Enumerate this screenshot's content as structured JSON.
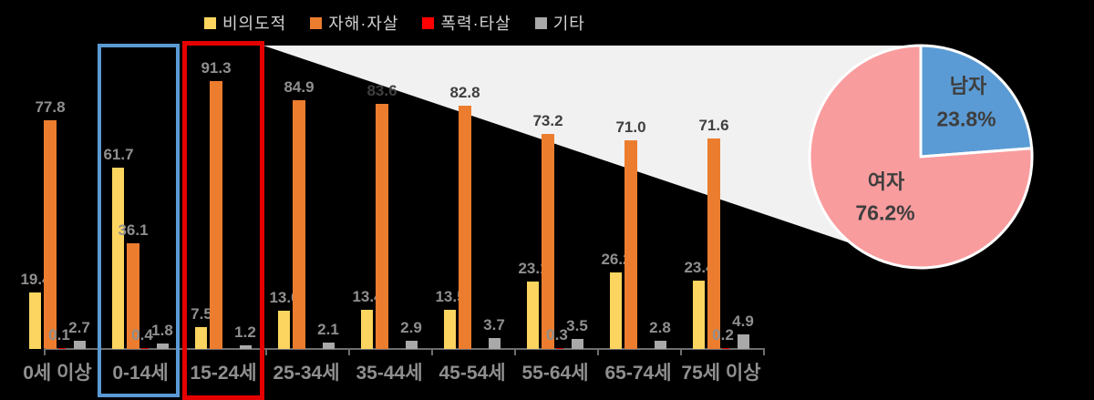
{
  "background": "#000000",
  "colors": {
    "wedge": "#F1F1F1",
    "axis": "#6E6E6E",
    "value_label": "#8F8F8F",
    "value_label_dark": "#3F3F3F",
    "category_label": "#8F8F8F",
    "legend_text": "#D2D2D2",
    "pie_stroke": "#FFFFFF"
  },
  "legend": {
    "items": [
      {
        "label": "비의도적",
        "color": "#FBD55F"
      },
      {
        "label": "자해·자살",
        "color": "#EC7D2F"
      },
      {
        "label": "폭력·타살",
        "color": "#FF0000"
      },
      {
        "label": "기타",
        "color": "#A9A9A9"
      }
    ]
  },
  "chart_data": [
    {
      "type": "bar",
      "title": "",
      "xlabel": "",
      "ylabel": "",
      "ylim": [
        0,
        100
      ],
      "grid": false,
      "legend_position": "top",
      "value_labels": true,
      "categories": [
        "0세 이상",
        "0-14세",
        "15-24세",
        "25-34세",
        "35-44세",
        "45-54세",
        "55-64세",
        "65-74세",
        "75세 이상"
      ],
      "series": [
        {
          "name": "비의도적",
          "color": "#FBD55F",
          "values": [
            "19.4",
            "61.7",
            "7.5",
            "13.0",
            "13.4",
            "13.5",
            "23.1",
            "26.2",
            "23.4"
          ]
        },
        {
          "name": "자해·자살",
          "color": "#EC7D2F",
          "values": [
            "77.8",
            "36.1",
            "91.3",
            "84.9",
            "83.6",
            "82.8",
            "73.2",
            "71.0",
            "71.6"
          ]
        },
        {
          "name": "폭력·타살",
          "color": "#D90000",
          "values": [
            "0.1",
            "0.4",
            null,
            null,
            null,
            null,
            "0.3",
            null,
            "0.2"
          ]
        },
        {
          "name": "기타",
          "color": "#A9A9A9",
          "values": [
            "2.7",
            "1.8",
            "1.2",
            "2.1",
            "2.9",
            "3.7",
            "3.5",
            "2.8",
            "4.9"
          ]
        }
      ],
      "highlights": [
        {
          "category": "0-14세",
          "box_color": "#5B9BD5"
        },
        {
          "category": "15-24세",
          "box_color": "#E50000"
        }
      ]
    },
    {
      "type": "pie",
      "title": "",
      "legend_position": "none",
      "slices": [
        {
          "label": "남자",
          "value": 23.8,
          "pct_label": "23.8%",
          "color": "#5B9BD5"
        },
        {
          "label": "여자",
          "value": 76.2,
          "pct_label": "76.2%",
          "color": "#F99C9E"
        }
      ]
    }
  ]
}
